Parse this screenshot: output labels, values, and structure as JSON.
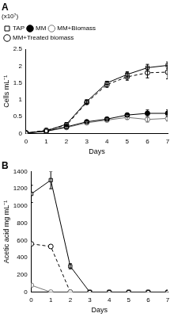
{
  "chart_data": [
    {
      "type": "line",
      "title": "A",
      "subtitle": "(x10⁷)",
      "x_label": "Days",
      "y_label": "Cells mL⁻¹",
      "x": [
        0,
        1,
        2,
        3,
        4,
        5,
        6,
        7
      ],
      "xlim": [
        0,
        7
      ],
      "xticks": [
        0,
        1,
        2,
        3,
        4,
        5,
        6,
        7
      ],
      "ylim": [
        0,
        2.5
      ],
      "yticks": [
        0,
        0.5,
        1,
        1.5,
        2,
        2.5
      ],
      "grid": false,
      "legend": "upper left",
      "series": [
        {
          "name": "TAP",
          "color": "#000000",
          "marker": "square-open",
          "line_style": "solid",
          "values": [
            0.02,
            0.08,
            0.28,
            0.95,
            1.5,
            1.75,
            1.95,
            2.02
          ],
          "errors": [
            0,
            0,
            0.02,
            0.05,
            0.05,
            0.08,
            0.1,
            0.1
          ]
        },
        {
          "name": "MM",
          "color": "#000000",
          "marker": "circle-filled",
          "line_style": "solid",
          "values": [
            0.02,
            0.07,
            0.2,
            0.35,
            0.43,
            0.55,
            0.6,
            0.6
          ],
          "errors": [
            0,
            0,
            0.01,
            0.03,
            0.04,
            0.05,
            0.1,
            0.1
          ]
        },
        {
          "name": "MM+Biomass",
          "color": "#777777",
          "marker": "circle-open",
          "line_style": "solid",
          "values": [
            0.02,
            0.07,
            0.18,
            0.32,
            0.4,
            0.48,
            0.42,
            0.45
          ],
          "errors": [
            0,
            0,
            0.01,
            0.03,
            0.04,
            0.06,
            0.08,
            0.08
          ]
        },
        {
          "name": "MM+Treated biomass",
          "color": "#000000",
          "marker": "circle-open",
          "line_style": "dashed",
          "values": [
            0.02,
            0.1,
            0.25,
            0.92,
            1.45,
            1.68,
            1.8,
            1.82
          ],
          "errors": [
            0,
            0,
            0.02,
            0.05,
            0.08,
            0.1,
            0.15,
            0.2
          ]
        }
      ]
    },
    {
      "type": "line",
      "title": "B",
      "x_label": "Days",
      "y_label": "Acetic acid mg mL⁻¹",
      "x": [
        0,
        1,
        2,
        3,
        4,
        5,
        6,
        7
      ],
      "xlim": [
        0,
        7
      ],
      "xticks": [
        0,
        1,
        2,
        3,
        4,
        5,
        6,
        7
      ],
      "ylim": [
        0,
        1400
      ],
      "yticks": [
        0,
        200,
        400,
        600,
        800,
        1000,
        1200,
        1400
      ],
      "grid": false,
      "series": [
        {
          "name": "TAP",
          "color": "#000000",
          "marker": "square-open",
          "line_style": "solid",
          "values": [
            1140,
            1300,
            300,
            0,
            0,
            0,
            0,
            0
          ],
          "errors": [
            100,
            100,
            30,
            0,
            0,
            0,
            0,
            0
          ]
        },
        {
          "name": "MM+Biomass",
          "color": "#777777",
          "marker": "circle-open",
          "line_style": "solid",
          "values": [
            80,
            0,
            0,
            0,
            0,
            0,
            0,
            0
          ]
        },
        {
          "name": "MM+Treated biomass",
          "color": "#000000",
          "marker": "circle-open",
          "line_style": "dashed",
          "values": [
            560,
            530,
            0,
            0,
            0,
            0,
            0,
            0
          ]
        }
      ]
    }
  ]
}
